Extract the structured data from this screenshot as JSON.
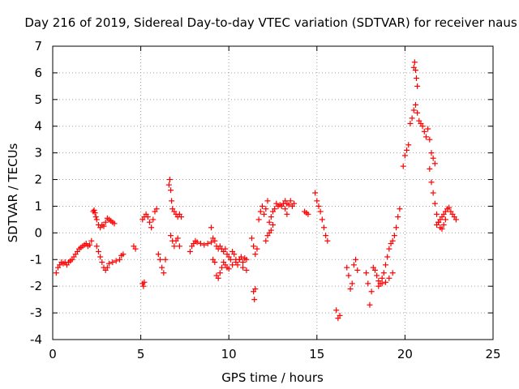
{
  "chart_data": {
    "type": "scatter",
    "title": "Day 216 of 2019, Sidereal Day-to-day VTEC variation (SDTVAR) for receiver naus",
    "xlabel": "GPS time / hours",
    "ylabel": "SDTVAR / TECUs",
    "xlim": [
      0,
      25
    ],
    "ylim": [
      -4,
      7
    ],
    "xticks": [
      0,
      5,
      10,
      15,
      20,
      25
    ],
    "yticks": [
      -4,
      -3,
      -2,
      -1,
      0,
      1,
      2,
      3,
      4,
      5,
      6,
      7
    ],
    "grid": true,
    "marker": "+",
    "color": "#ff0000",
    "series": [
      {
        "name": "SDTVAR",
        "x": [
          0.2,
          0.3,
          0.4,
          0.5,
          0.6,
          0.7,
          0.8,
          0.9,
          1.0,
          1.1,
          1.2,
          1.3,
          1.4,
          1.5,
          1.6,
          1.7,
          1.8,
          1.9,
          2.0,
          2.1,
          2.2,
          2.3,
          2.35,
          2.4,
          2.45,
          2.5,
          2.6,
          2.7,
          2.8,
          2.9,
          3.0,
          3.1,
          3.2,
          3.3,
          3.4,
          3.5,
          2.5,
          2.6,
          2.7,
          2.8,
          2.9,
          3.0,
          3.1,
          3.2,
          3.4,
          3.6,
          3.8,
          3.9,
          4.0,
          4.6,
          4.7,
          5.1,
          5.2,
          5.3,
          5.4,
          5.5,
          5.6,
          5.7,
          5.8,
          5.9,
          5.1,
          5.15,
          5.2,
          6.0,
          6.1,
          6.2,
          6.3,
          6.4,
          6.6,
          6.65,
          6.7,
          6.75,
          6.8,
          6.9,
          7.0,
          7.1,
          7.2,
          7.3,
          6.7,
          6.8,
          6.9,
          7.0,
          7.1,
          7.2,
          7.8,
          7.9,
          8.0,
          8.1,
          8.2,
          8.4,
          8.6,
          8.8,
          9.0,
          9.1,
          9.2,
          9.3,
          9.4,
          9.5,
          9.6,
          9.7,
          9.8,
          9.9,
          10.0,
          10.1,
          10.2,
          10.3,
          10.4,
          10.5,
          10.6,
          10.7,
          10.8,
          10.9,
          11.0,
          9.0,
          9.1,
          9.2,
          9.3,
          9.4,
          9.5,
          9.6,
          9.7,
          9.8,
          9.9,
          10.0,
          10.2,
          10.4,
          10.6,
          10.8,
          11.0,
          11.4,
          11.45,
          11.5,
          11.3,
          11.4,
          11.5,
          11.6,
          11.7,
          11.8,
          11.9,
          12.0,
          12.1,
          12.2,
          12.3,
          12.4,
          12.5,
          12.6,
          12.7,
          12.8,
          12.9,
          13.0,
          13.1,
          13.2,
          13.3,
          13.4,
          13.5,
          13.6,
          13.7,
          12.1,
          12.2,
          12.3,
          12.4,
          12.5,
          13.2,
          13.3,
          14.3,
          14.4,
          14.5,
          14.9,
          15.0,
          15.1,
          15.2,
          15.3,
          15.4,
          15.5,
          15.6,
          16.1,
          16.2,
          16.3,
          16.7,
          16.8,
          16.9,
          17.0,
          17.1,
          17.2,
          17.3,
          17.8,
          17.9,
          18.0,
          18.1,
          18.2,
          18.3,
          18.4,
          18.5,
          18.6,
          18.7,
          18.8,
          18.9,
          19.0,
          19.1,
          19.2,
          19.3,
          19.4,
          19.5,
          19.6,
          19.7,
          18.5,
          18.7,
          18.9,
          19.1,
          19.3,
          19.9,
          20.0,
          20.1,
          20.2,
          20.3,
          20.4,
          20.5,
          20.6,
          20.7,
          20.8,
          20.9,
          21.0,
          21.1,
          21.2,
          21.3,
          21.4,
          21.5,
          21.6,
          21.7,
          21.8,
          21.9,
          22.0,
          22.1,
          22.2,
          22.3,
          22.4,
          22.5,
          22.6,
          22.7,
          22.8,
          22.9,
          20.5,
          20.55,
          20.6,
          20.65,
          20.7,
          21.4,
          21.5,
          21.6,
          21.7,
          21.8,
          21.9,
          22.0,
          22.1,
          22.2,
          22.3
        ],
        "y": [
          -1.5,
          -1.3,
          -1.2,
          -1.1,
          -1.15,
          -1.1,
          -1.2,
          -1.1,
          -1.05,
          -1.0,
          -0.9,
          -0.8,
          -0.7,
          -0.6,
          -0.55,
          -0.5,
          -0.45,
          -0.4,
          -0.5,
          -0.45,
          -0.3,
          0.8,
          0.85,
          0.75,
          0.6,
          0.5,
          0.3,
          0.2,
          0.3,
          0.25,
          0.4,
          0.55,
          0.5,
          0.45,
          0.4,
          0.35,
          -0.5,
          -0.7,
          -0.9,
          -1.1,
          -1.3,
          -1.4,
          -1.3,
          -1.15,
          -1.1,
          -1.05,
          -1.0,
          -0.85,
          -0.8,
          -0.5,
          -0.6,
          0.5,
          0.6,
          0.7,
          0.6,
          0.4,
          0.2,
          0.5,
          0.8,
          0.9,
          -1.9,
          -2.0,
          -1.85,
          -0.8,
          -1.0,
          -1.3,
          -1.5,
          -1.0,
          1.8,
          2.0,
          1.6,
          1.2,
          0.9,
          0.8,
          0.7,
          0.6,
          0.7,
          0.6,
          -0.1,
          -0.3,
          -0.5,
          -0.3,
          -0.2,
          -0.5,
          -0.7,
          -0.5,
          -0.4,
          -0.3,
          -0.35,
          -0.4,
          -0.45,
          -0.4,
          -0.35,
          -0.2,
          -0.3,
          -0.5,
          -0.6,
          -0.5,
          -0.6,
          -0.7,
          -0.6,
          -0.8,
          -0.9,
          -1.0,
          -0.7,
          -0.8,
          -1.0,
          -1.2,
          -1.0,
          -0.9,
          -1.1,
          -0.95,
          -1.0,
          0.2,
          -1.0,
          -1.1,
          -1.6,
          -1.7,
          -1.5,
          -1.3,
          -1.1,
          -1.2,
          -1.3,
          -1.35,
          -1.2,
          -1.1,
          -1.0,
          -1.3,
          -1.4,
          -2.2,
          -2.5,
          -2.1,
          -0.2,
          -0.5,
          -0.8,
          -0.6,
          0.5,
          0.8,
          1.0,
          0.7,
          0.9,
          1.2,
          0.4,
          0.6,
          0.8,
          0.9,
          1.1,
          1.0,
          1.05,
          1.0,
          1.1,
          1.2,
          1.1,
          1.05,
          1.2,
          1.0,
          1.1,
          -0.3,
          -0.1,
          0.0,
          0.1,
          0.3,
          0.9,
          0.7,
          0.8,
          0.75,
          0.7,
          1.5,
          1.2,
          1.0,
          0.8,
          0.5,
          0.2,
          -0.1,
          -0.3,
          -2.9,
          -3.2,
          -3.1,
          -1.3,
          -1.6,
          -2.1,
          -1.9,
          -1.2,
          -1.0,
          -1.4,
          -1.5,
          -1.9,
          -2.7,
          -2.2,
          -1.3,
          -1.4,
          -1.6,
          -1.8,
          -1.9,
          -1.7,
          -1.5,
          -1.2,
          -0.9,
          -0.6,
          -0.4,
          -0.3,
          -0.1,
          0.2,
          0.6,
          0.9,
          -2.0,
          -1.9,
          -1.85,
          -1.7,
          -1.5,
          2.5,
          2.9,
          3.1,
          3.3,
          4.1,
          4.3,
          4.6,
          4.8,
          4.5,
          4.2,
          4.1,
          4.0,
          3.8,
          3.6,
          3.9,
          3.5,
          3.0,
          2.8,
          2.6,
          0.3,
          0.4,
          0.5,
          0.6,
          0.7,
          0.8,
          0.9,
          0.95,
          0.8,
          0.7,
          0.6,
          0.5,
          6.2,
          6.4,
          6.1,
          5.8,
          5.5,
          2.4,
          1.9,
          1.5,
          1.1,
          0.7,
          0.4,
          0.2,
          0.15,
          0.3,
          0.5
        ]
      }
    ]
  }
}
